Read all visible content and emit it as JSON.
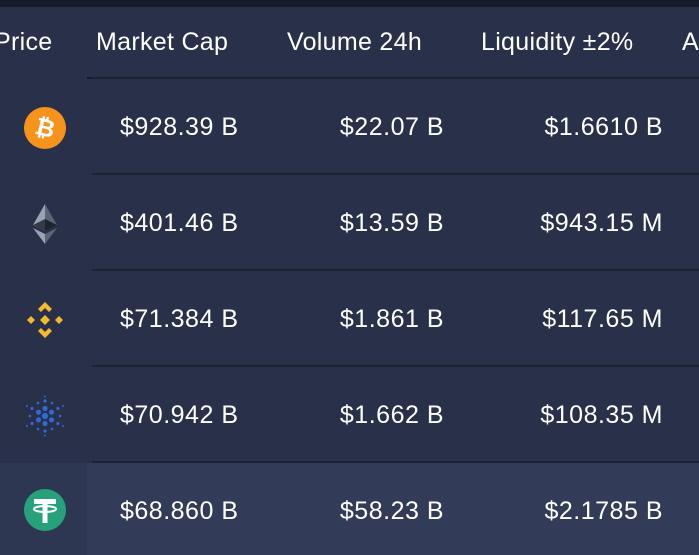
{
  "columns": {
    "price": "Price",
    "market_cap": "Market Cap",
    "volume": "Volume 24h",
    "liquidity": "Liquidity ±2%",
    "next": "A"
  },
  "rows": [
    {
      "icon": "bitcoin-icon",
      "market_cap": "$928.39 B",
      "volume": "$22.07 B",
      "liquidity": "$1.6610 B"
    },
    {
      "icon": "ethereum-icon",
      "market_cap": "$401.46 B",
      "volume": "$13.59 B",
      "liquidity": "$943.15 M"
    },
    {
      "icon": "binance-coin-icon",
      "market_cap": "$71.384 B",
      "volume": "$1.861 B",
      "liquidity": "$117.65 M"
    },
    {
      "icon": "cardano-icon",
      "market_cap": "$70.942 B",
      "volume": "$1.662 B",
      "liquidity": "$108.35 M"
    },
    {
      "icon": "tether-icon",
      "market_cap": "$68.860 B",
      "volume": "$58.23 B",
      "liquidity": "$2.1785 B"
    }
  ],
  "colors": {
    "bitcoin": "#f7931a",
    "binance": "#f3ba2f",
    "cardano": "#3468d1",
    "tether": "#26a17b",
    "row_bg": "#28304a",
    "row_highlight": "#323c58"
  }
}
